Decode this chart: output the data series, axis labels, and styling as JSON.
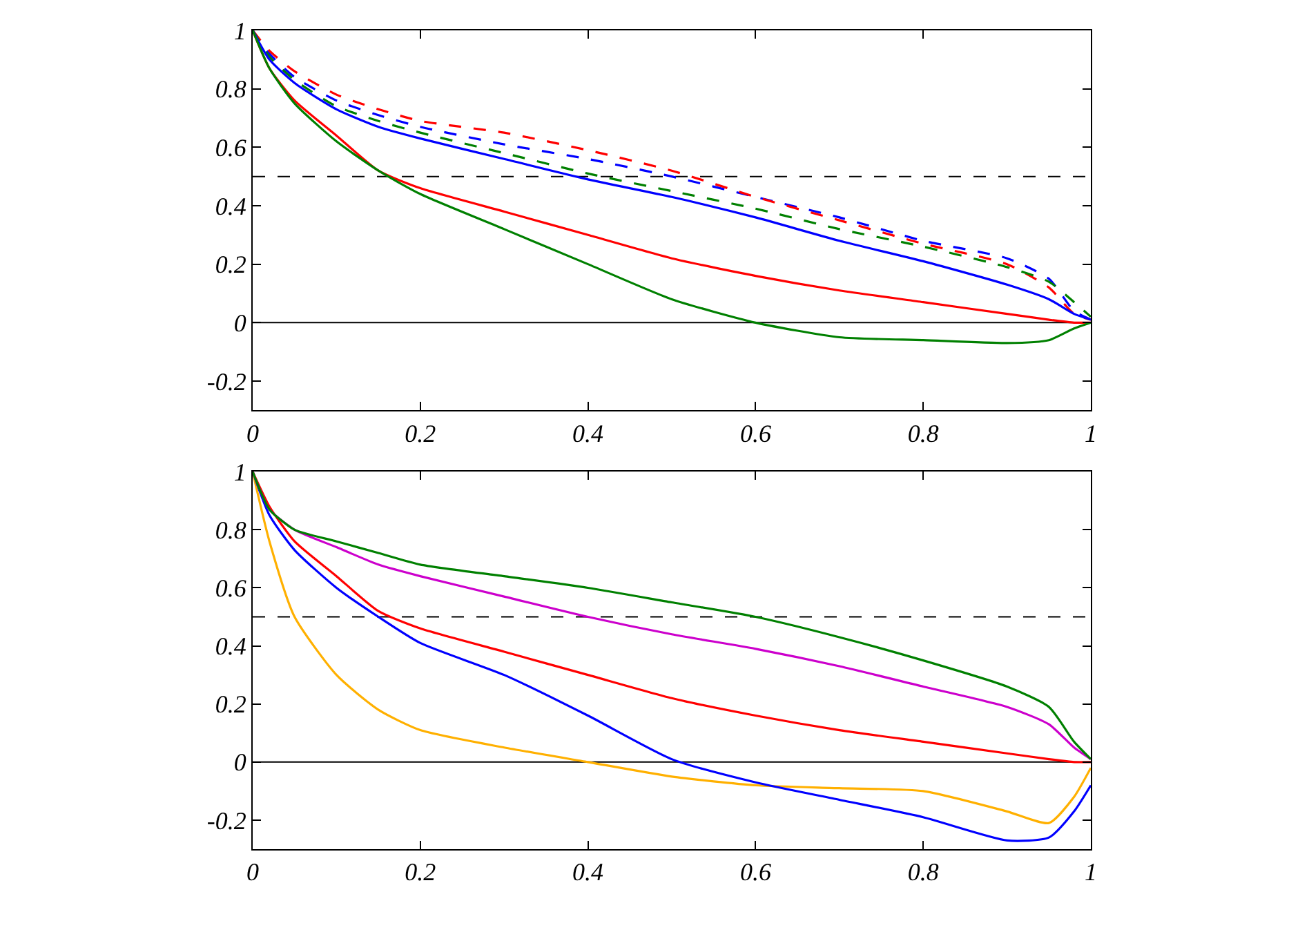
{
  "chart_data": [
    {
      "type": "line",
      "x": [
        0,
        0.02,
        0.05,
        0.1,
        0.15,
        0.2,
        0.3,
        0.4,
        0.5,
        0.6,
        0.7,
        0.8,
        0.9,
        0.95,
        0.98,
        1
      ],
      "xlim": [
        0,
        1
      ],
      "xticks": [
        0,
        0.2,
        0.4,
        0.6,
        0.8,
        1
      ],
      "ylim": [
        -0.3,
        1
      ],
      "yticks": [
        -0.2,
        0,
        0.2,
        0.4,
        0.6,
        0.8,
        1
      ],
      "grid": false,
      "marker": "none",
      "ref_lines": [
        {
          "axis": "y",
          "value": 0,
          "color": "#000000",
          "line_style": "solid"
        },
        {
          "axis": "y",
          "value": 0.5,
          "color": "#000000",
          "line_style": "dashed"
        }
      ],
      "series": [
        {
          "color": "#0000ff",
          "line_style": "dashed",
          "values": [
            1,
            0.92,
            0.84,
            0.76,
            0.71,
            0.67,
            0.61,
            0.56,
            0.5,
            0.43,
            0.36,
            0.28,
            0.22,
            0.15,
            0.04,
            0.01
          ]
        },
        {
          "color": "#ff0000",
          "line_style": "dashed",
          "values": [
            1,
            0.93,
            0.86,
            0.78,
            0.73,
            0.69,
            0.65,
            0.59,
            0.52,
            0.43,
            0.35,
            0.27,
            0.2,
            0.12,
            0.03,
            0.01
          ]
        },
        {
          "color": "#008000",
          "line_style": "dashed",
          "values": [
            1,
            0.91,
            0.83,
            0.74,
            0.69,
            0.65,
            0.58,
            0.51,
            0.45,
            0.39,
            0.32,
            0.26,
            0.19,
            0.14,
            0.07,
            0.02
          ]
        },
        {
          "color": "#ff0000",
          "line_style": "solid",
          "values": [
            1,
            0.87,
            0.76,
            0.64,
            0.52,
            0.46,
            0.38,
            0.3,
            0.22,
            0.16,
            0.11,
            0.07,
            0.03,
            0.01,
            0,
            0
          ]
        },
        {
          "color": "#0000ff",
          "line_style": "solid",
          "values": [
            1,
            0.9,
            0.82,
            0.73,
            0.67,
            0.63,
            0.56,
            0.49,
            0.43,
            0.36,
            0.28,
            0.21,
            0.13,
            0.08,
            0.03,
            0.01
          ]
        },
        {
          "color": "#008000",
          "line_style": "solid",
          "values": [
            1,
            0.87,
            0.75,
            0.62,
            0.52,
            0.44,
            0.32,
            0.2,
            0.08,
            0,
            -0.05,
            -0.06,
            -0.07,
            -0.06,
            -0.02,
            0
          ]
        }
      ]
    },
    {
      "type": "line",
      "x": [
        0,
        0.02,
        0.05,
        0.1,
        0.15,
        0.2,
        0.3,
        0.4,
        0.5,
        0.6,
        0.7,
        0.8,
        0.9,
        0.95,
        0.98,
        1
      ],
      "xlim": [
        0,
        1
      ],
      "xticks": [
        0,
        0.2,
        0.4,
        0.6,
        0.8,
        1
      ],
      "ylim": [
        -0.3,
        1
      ],
      "yticks": [
        -0.2,
        0,
        0.2,
        0.4,
        0.6,
        0.8,
        1
      ],
      "grid": false,
      "marker": "none",
      "ref_lines": [
        {
          "axis": "y",
          "value": 0,
          "color": "#000000",
          "line_style": "solid"
        },
        {
          "axis": "y",
          "value": 0.5,
          "color": "#000000",
          "line_style": "dashed"
        }
      ],
      "series": [
        {
          "color": "#ffb000",
          "line_style": "solid",
          "values": [
            1,
            0.76,
            0.5,
            0.3,
            0.18,
            0.11,
            0.05,
            0,
            -0.05,
            -0.08,
            -0.09,
            -0.1,
            -0.17,
            -0.21,
            -0.12,
            -0.02
          ]
        },
        {
          "color": "#0000ff",
          "line_style": "solid",
          "values": [
            1,
            0.85,
            0.73,
            0.6,
            0.5,
            0.41,
            0.3,
            0.16,
            0.01,
            -0.07,
            -0.13,
            -0.19,
            -0.27,
            -0.26,
            -0.17,
            -0.08
          ]
        },
        {
          "color": "#ff0000",
          "line_style": "solid",
          "values": [
            1,
            0.88,
            0.76,
            0.64,
            0.52,
            0.46,
            0.38,
            0.3,
            0.22,
            0.16,
            0.11,
            0.07,
            0.03,
            0.01,
            0,
            0
          ]
        },
        {
          "color": "#cc00cc",
          "line_style": "solid",
          "values": [
            1,
            0.87,
            0.8,
            0.74,
            0.68,
            0.64,
            0.57,
            0.5,
            0.44,
            0.39,
            0.33,
            0.26,
            0.19,
            0.13,
            0.05,
            0.01
          ]
        },
        {
          "color": "#008000",
          "line_style": "solid",
          "values": [
            1,
            0.87,
            0.8,
            0.76,
            0.72,
            0.68,
            0.64,
            0.6,
            0.55,
            0.5,
            0.43,
            0.35,
            0.26,
            0.19,
            0.07,
            0.01
          ]
        }
      ]
    }
  ]
}
